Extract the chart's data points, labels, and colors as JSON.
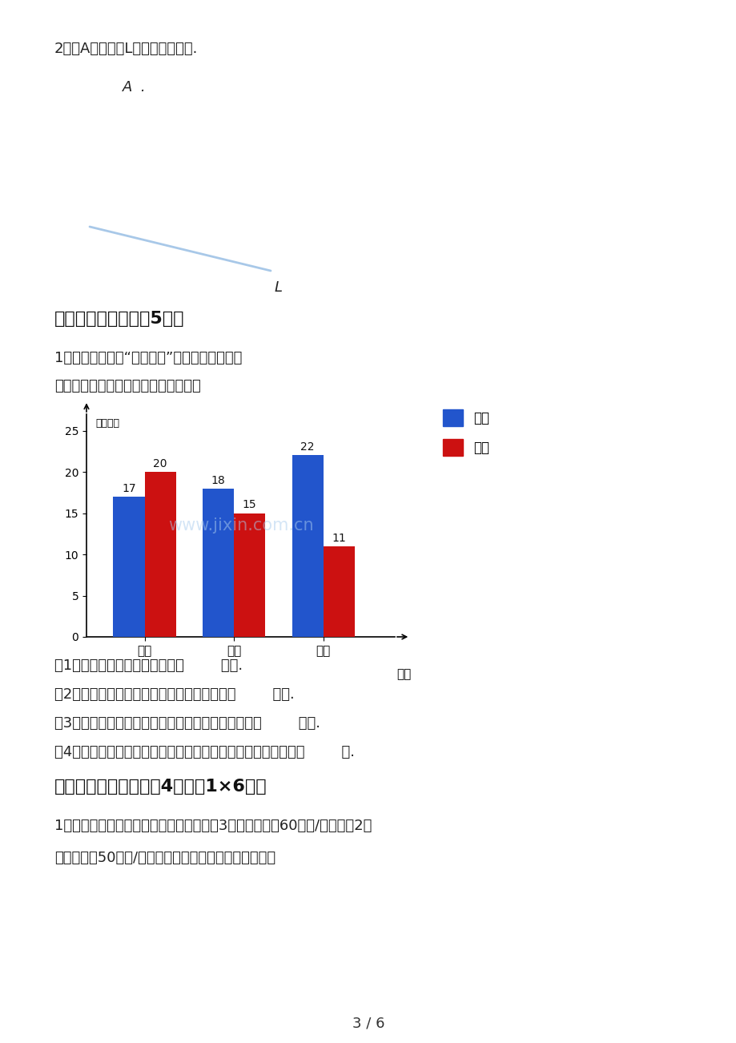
{
  "page_bg": "#ffffff",
  "section2_label": "2、过A点画直线L的平行线和垂线.",
  "point_A_label": "A  .",
  "line_L_label": "L",
  "line_color": "#a8c8e8",
  "section6_title": "六、统计图表。（共5分）",
  "section6_text1": "1、光明小学举行“爱我中华”书法、绘画作品展",
  "section6_text2": "下面是六年级各班上交作品情况统计图",
  "bar_categories": [
    "一班",
    "二班",
    "三班"
  ],
  "bar_blue": [
    17,
    18,
    22
  ],
  "bar_red": [
    20,
    15,
    11
  ],
  "blue_color": "#2255cc",
  "red_color": "#cc1111",
  "ylabel": "数量／件",
  "xlabel": "班级",
  "yticks": [
    0,
    5,
    10,
    15,
    20,
    25
  ],
  "legend_blue": "书法",
  "legend_red": "绘画",
  "watermark": "www.jixin.com.cn",
  "q1": "（1）六年级一共上交书法作品（        ）件.",
  "q2": "（2）六年一班上交的书法作品比绘画作品少（        ）件.",
  "q3": "（3）六年二班上交书法作品件数是绘画作品件数的（        ）倍.",
  "q4": "（4）六年级三班上交书法作品和绘画作品件数的最简整数比是（        ）.",
  "section7_title": "七、解决问题。（每题4分，共1×6分）",
  "section7_q1_line1": "1、司机王叔叔从厦门出发到福州送货，前3小时的速度是60千米/小时，兰2小",
  "section7_q1_line2": "时的速度是50千米/小时，王叔叔一共行馿了多少千米？",
  "page_num": "3 / 6"
}
